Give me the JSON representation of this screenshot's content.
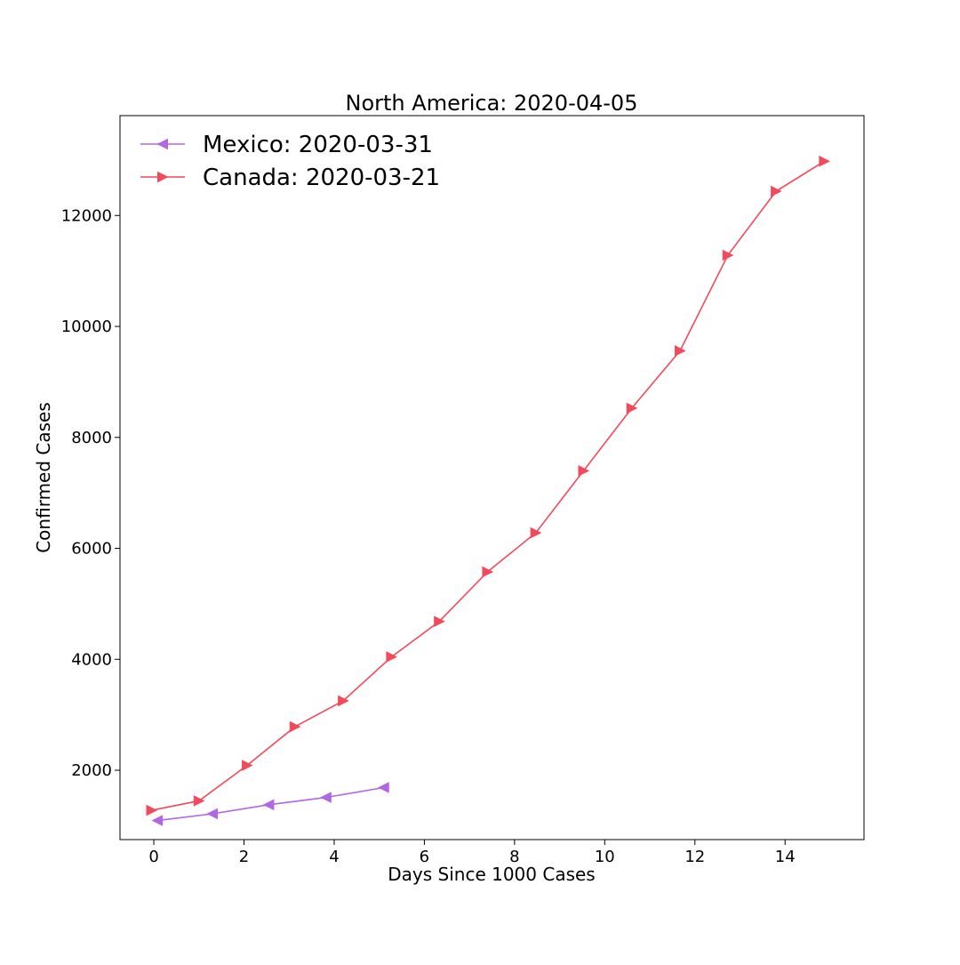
{
  "chart_data": {
    "type": "line",
    "title": "North America: 2020-04-05",
    "xlabel": "Days Since 1000 Cases",
    "ylabel": "Confirmed Cases",
    "xlim": [
      -0.75,
      15.75
    ],
    "ylim": [
      750,
      13800
    ],
    "xticks": [
      0,
      2,
      4,
      6,
      8,
      10,
      12,
      14
    ],
    "yticks": [
      2000,
      4000,
      6000,
      8000,
      10000,
      12000
    ],
    "grid": false,
    "legend_position": "top-left",
    "series": [
      {
        "name": "Mexico: 2020-03-31",
        "color": "#b266e6",
        "marker": "triangle-left",
        "x": [
          0.08,
          1.3,
          2.55,
          3.82,
          5.1
        ],
        "y": [
          1094,
          1215,
          1378,
          1510,
          1688
        ]
      },
      {
        "name": "Canada: 2020-03-21",
        "color": "#f24a5a",
        "marker": "triangle-right",
        "x": [
          -0.05,
          1.0,
          2.07,
          3.13,
          4.2,
          5.27,
          6.33,
          7.4,
          8.47,
          9.53,
          10.6,
          11.67,
          12.73,
          13.8,
          14.87
        ],
        "y": [
          1278,
          1448,
          2088,
          2785,
          3251,
          4043,
          4682,
          5576,
          6280,
          7398,
          8527,
          9560,
          11283,
          12437,
          12978
        ]
      }
    ]
  }
}
